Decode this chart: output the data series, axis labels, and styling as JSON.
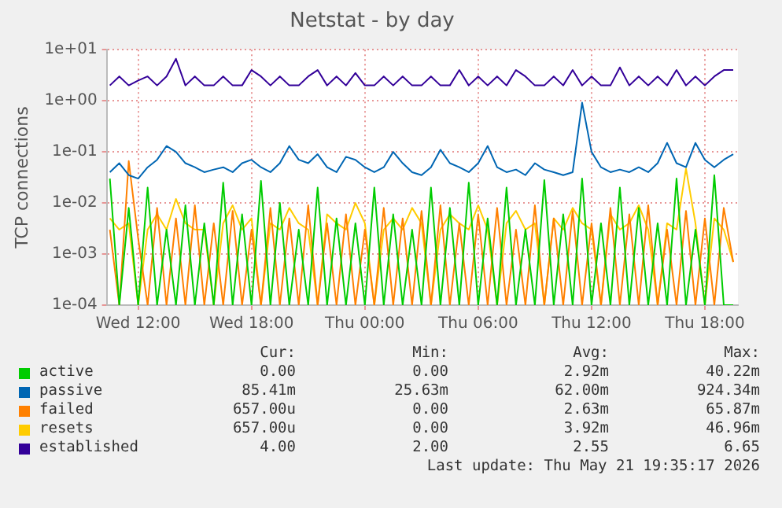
{
  "chart_data": {
    "type": "line",
    "title": "Netstat - by day",
    "ylabel": "TCP connections",
    "log": "y",
    "grid": true,
    "legend": "bottom",
    "marker": "none",
    "line_style": "solid",
    "xlim": [
      "2026-05-20T10:20",
      "2026-05-21T19:45"
    ],
    "xticks": [
      {
        "value": "2026-05-20T12:00",
        "label": "Wed 12:00"
      },
      {
        "value": "2026-05-20T18:00",
        "label": "Wed 18:00"
      },
      {
        "value": "2026-05-21T00:00",
        "label": "Thu 00:00"
      },
      {
        "value": "2026-05-21T06:00",
        "label": "Thu 06:00"
      },
      {
        "value": "2026-05-21T12:00",
        "label": "Thu 12:00"
      },
      {
        "value": "2026-05-21T18:00",
        "label": "Thu 18:00"
      }
    ],
    "ylim": [
      0.0001,
      10
    ],
    "yticks": [
      {
        "value": 0.0001,
        "label": "1e-04"
      },
      {
        "value": 0.001,
        "label": "1e-03"
      },
      {
        "value": 0.01,
        "label": "1e-02"
      },
      {
        "value": 0.1,
        "label": "1e-01"
      },
      {
        "value": 1,
        "label": "1e+00"
      },
      {
        "value": 10,
        "label": "1e+01"
      }
    ],
    "x": [
      "2026-05-20T10:30",
      "2026-05-20T11:00",
      "2026-05-20T11:30",
      "2026-05-20T12:00",
      "2026-05-20T12:30",
      "2026-05-20T13:00",
      "2026-05-20T13:30",
      "2026-05-20T14:00",
      "2026-05-20T14:30",
      "2026-05-20T15:00",
      "2026-05-20T15:30",
      "2026-05-20T16:00",
      "2026-05-20T16:30",
      "2026-05-20T17:00",
      "2026-05-20T17:30",
      "2026-05-20T18:00",
      "2026-05-20T18:30",
      "2026-05-20T19:00",
      "2026-05-20T19:30",
      "2026-05-20T20:00",
      "2026-05-20T20:30",
      "2026-05-20T21:00",
      "2026-05-20T21:30",
      "2026-05-20T22:00",
      "2026-05-20T22:30",
      "2026-05-20T23:00",
      "2026-05-20T23:30",
      "2026-05-21T00:00",
      "2026-05-21T00:30",
      "2026-05-21T01:00",
      "2026-05-21T01:30",
      "2026-05-21T02:00",
      "2026-05-21T02:30",
      "2026-05-21T03:00",
      "2026-05-21T03:30",
      "2026-05-21T04:00",
      "2026-05-21T04:30",
      "2026-05-21T05:00",
      "2026-05-21T05:30",
      "2026-05-21T06:00",
      "2026-05-21T06:30",
      "2026-05-21T07:00",
      "2026-05-21T07:30",
      "2026-05-21T08:00",
      "2026-05-21T08:30",
      "2026-05-21T09:00",
      "2026-05-21T09:30",
      "2026-05-21T10:00",
      "2026-05-21T10:30",
      "2026-05-21T11:00",
      "2026-05-21T11:30",
      "2026-05-21T12:00",
      "2026-05-21T12:30",
      "2026-05-21T13:00",
      "2026-05-21T13:30",
      "2026-05-21T14:00",
      "2026-05-21T14:30",
      "2026-05-21T15:00",
      "2026-05-21T15:30",
      "2026-05-21T16:00",
      "2026-05-21T16:30",
      "2026-05-21T17:00",
      "2026-05-21T17:30",
      "2026-05-21T18:00",
      "2026-05-21T18:30",
      "2026-05-21T19:00",
      "2026-05-21T19:30"
    ],
    "series": [
      {
        "name": "active",
        "color": "#00cc00",
        "values": [
          0.03,
          0.0001,
          0.008,
          0.0001,
          0.02,
          0.0001,
          0.003,
          0.0001,
          0.009,
          0.0001,
          0.004,
          0.0001,
          0.025,
          0.0001,
          0.006,
          0.0001,
          0.027,
          0.0001,
          0.01,
          0.0001,
          0.003,
          0.0001,
          0.02,
          0.0001,
          0.005,
          0.0001,
          0.004,
          0.0001,
          0.02,
          0.0001,
          0.006,
          0.0001,
          0.003,
          0.0001,
          0.02,
          0.0001,
          0.008,
          0.0001,
          0.025,
          0.0001,
          0.005,
          0.0001,
          0.02,
          0.0001,
          0.003,
          0.0001,
          0.028,
          0.0001,
          0.006,
          0.0001,
          0.03,
          0.0001,
          0.004,
          0.0001,
          0.02,
          0.0001,
          0.008,
          0.0001,
          0.004,
          0.0001,
          0.03,
          0.0001,
          0.003,
          0.0001,
          0.035,
          0.0001,
          0.0001
        ]
      },
      {
        "name": "passive",
        "color": "#0066b3",
        "values": [
          0.04,
          0.06,
          0.035,
          0.03,
          0.05,
          0.07,
          0.13,
          0.1,
          0.06,
          0.05,
          0.04,
          0.045,
          0.05,
          0.04,
          0.06,
          0.07,
          0.05,
          0.04,
          0.06,
          0.13,
          0.07,
          0.06,
          0.09,
          0.05,
          0.04,
          0.08,
          0.07,
          0.05,
          0.04,
          0.05,
          0.1,
          0.06,
          0.04,
          0.035,
          0.05,
          0.11,
          0.06,
          0.05,
          0.04,
          0.06,
          0.13,
          0.05,
          0.04,
          0.045,
          0.035,
          0.06,
          0.045,
          0.04,
          0.035,
          0.04,
          0.92,
          0.1,
          0.05,
          0.04,
          0.045,
          0.04,
          0.05,
          0.04,
          0.06,
          0.15,
          0.06,
          0.05,
          0.15,
          0.07,
          0.05,
          0.07,
          0.09
        ]
      },
      {
        "name": "failed",
        "color": "#ff8000",
        "values": [
          0.003,
          0.0001,
          0.066,
          0.002,
          0.0001,
          0.008,
          0.0001,
          0.005,
          0.0001,
          0.009,
          0.0001,
          0.004,
          0.0001,
          0.007,
          0.0001,
          0.003,
          0.0001,
          0.008,
          0.0001,
          0.005,
          0.0001,
          0.009,
          0.0001,
          0.004,
          0.0001,
          0.006,
          0.0001,
          0.003,
          0.0001,
          0.008,
          0.0001,
          0.005,
          0.0001,
          0.007,
          0.0001,
          0.009,
          0.0001,
          0.004,
          0.0001,
          0.006,
          0.0001,
          0.008,
          0.0001,
          0.003,
          0.0001,
          0.009,
          0.0001,
          0.005,
          0.0001,
          0.007,
          0.0001,
          0.004,
          0.0001,
          0.008,
          0.0001,
          0.006,
          0.0001,
          0.009,
          0.0001,
          0.003,
          0.0001,
          0.007,
          0.0001,
          0.005,
          0.0001,
          0.008,
          0.0007
        ]
      },
      {
        "name": "resets",
        "color": "#ffcc00",
        "values": [
          0.005,
          0.003,
          0.004,
          0.0001,
          0.003,
          0.006,
          0.003,
          0.012,
          0.004,
          0.003,
          0.003,
          0.0001,
          0.004,
          0.009,
          0.003,
          0.005,
          0.0001,
          0.004,
          0.003,
          0.008,
          0.004,
          0.003,
          0.0001,
          0.006,
          0.004,
          0.003,
          0.01,
          0.004,
          0.0001,
          0.003,
          0.005,
          0.003,
          0.008,
          0.004,
          0.0001,
          0.003,
          0.006,
          0.004,
          0.003,
          0.009,
          0.003,
          0.0001,
          0.004,
          0.007,
          0.003,
          0.004,
          0.0001,
          0.005,
          0.003,
          0.008,
          0.004,
          0.003,
          0.0001,
          0.006,
          0.003,
          0.004,
          0.009,
          0.003,
          0.0001,
          0.004,
          0.003,
          0.047,
          0.004,
          0.0001,
          0.005,
          0.003,
          0.0007
        ]
      },
      {
        "name": "established",
        "color": "#330099",
        "values": [
          2,
          3,
          2,
          2.5,
          3,
          2,
          3,
          6.65,
          2,
          3,
          2,
          2,
          3,
          2,
          2,
          4,
          3,
          2,
          3,
          2,
          2,
          3,
          4,
          2,
          3,
          2,
          3.5,
          2,
          2,
          3,
          2,
          3,
          2,
          2,
          3,
          2,
          2,
          4,
          2,
          3,
          2,
          3,
          2,
          4,
          3,
          2,
          2,
          3,
          2,
          4,
          2,
          3,
          2,
          2,
          4.5,
          2,
          3,
          2,
          3,
          2,
          4,
          2,
          3,
          2,
          3,
          4,
          4
        ]
      }
    ],
    "annotations": [
      "Cur:",
      "Min:",
      "Avg:",
      "Max:",
      "0.00",
      "0.00",
      "2.92m",
      "40.22m",
      "85.41m",
      "25.63m",
      "62.00m",
      "924.34m",
      "657.00u",
      "0.00",
      "2.63m",
      "65.87m",
      "657.00u",
      "0.00",
      "3.92m",
      "46.96m",
      "4.00",
      "2.00",
      "2.55",
      "6.65",
      "Last update: Thu May 21 19:35:17 2026"
    ]
  }
}
